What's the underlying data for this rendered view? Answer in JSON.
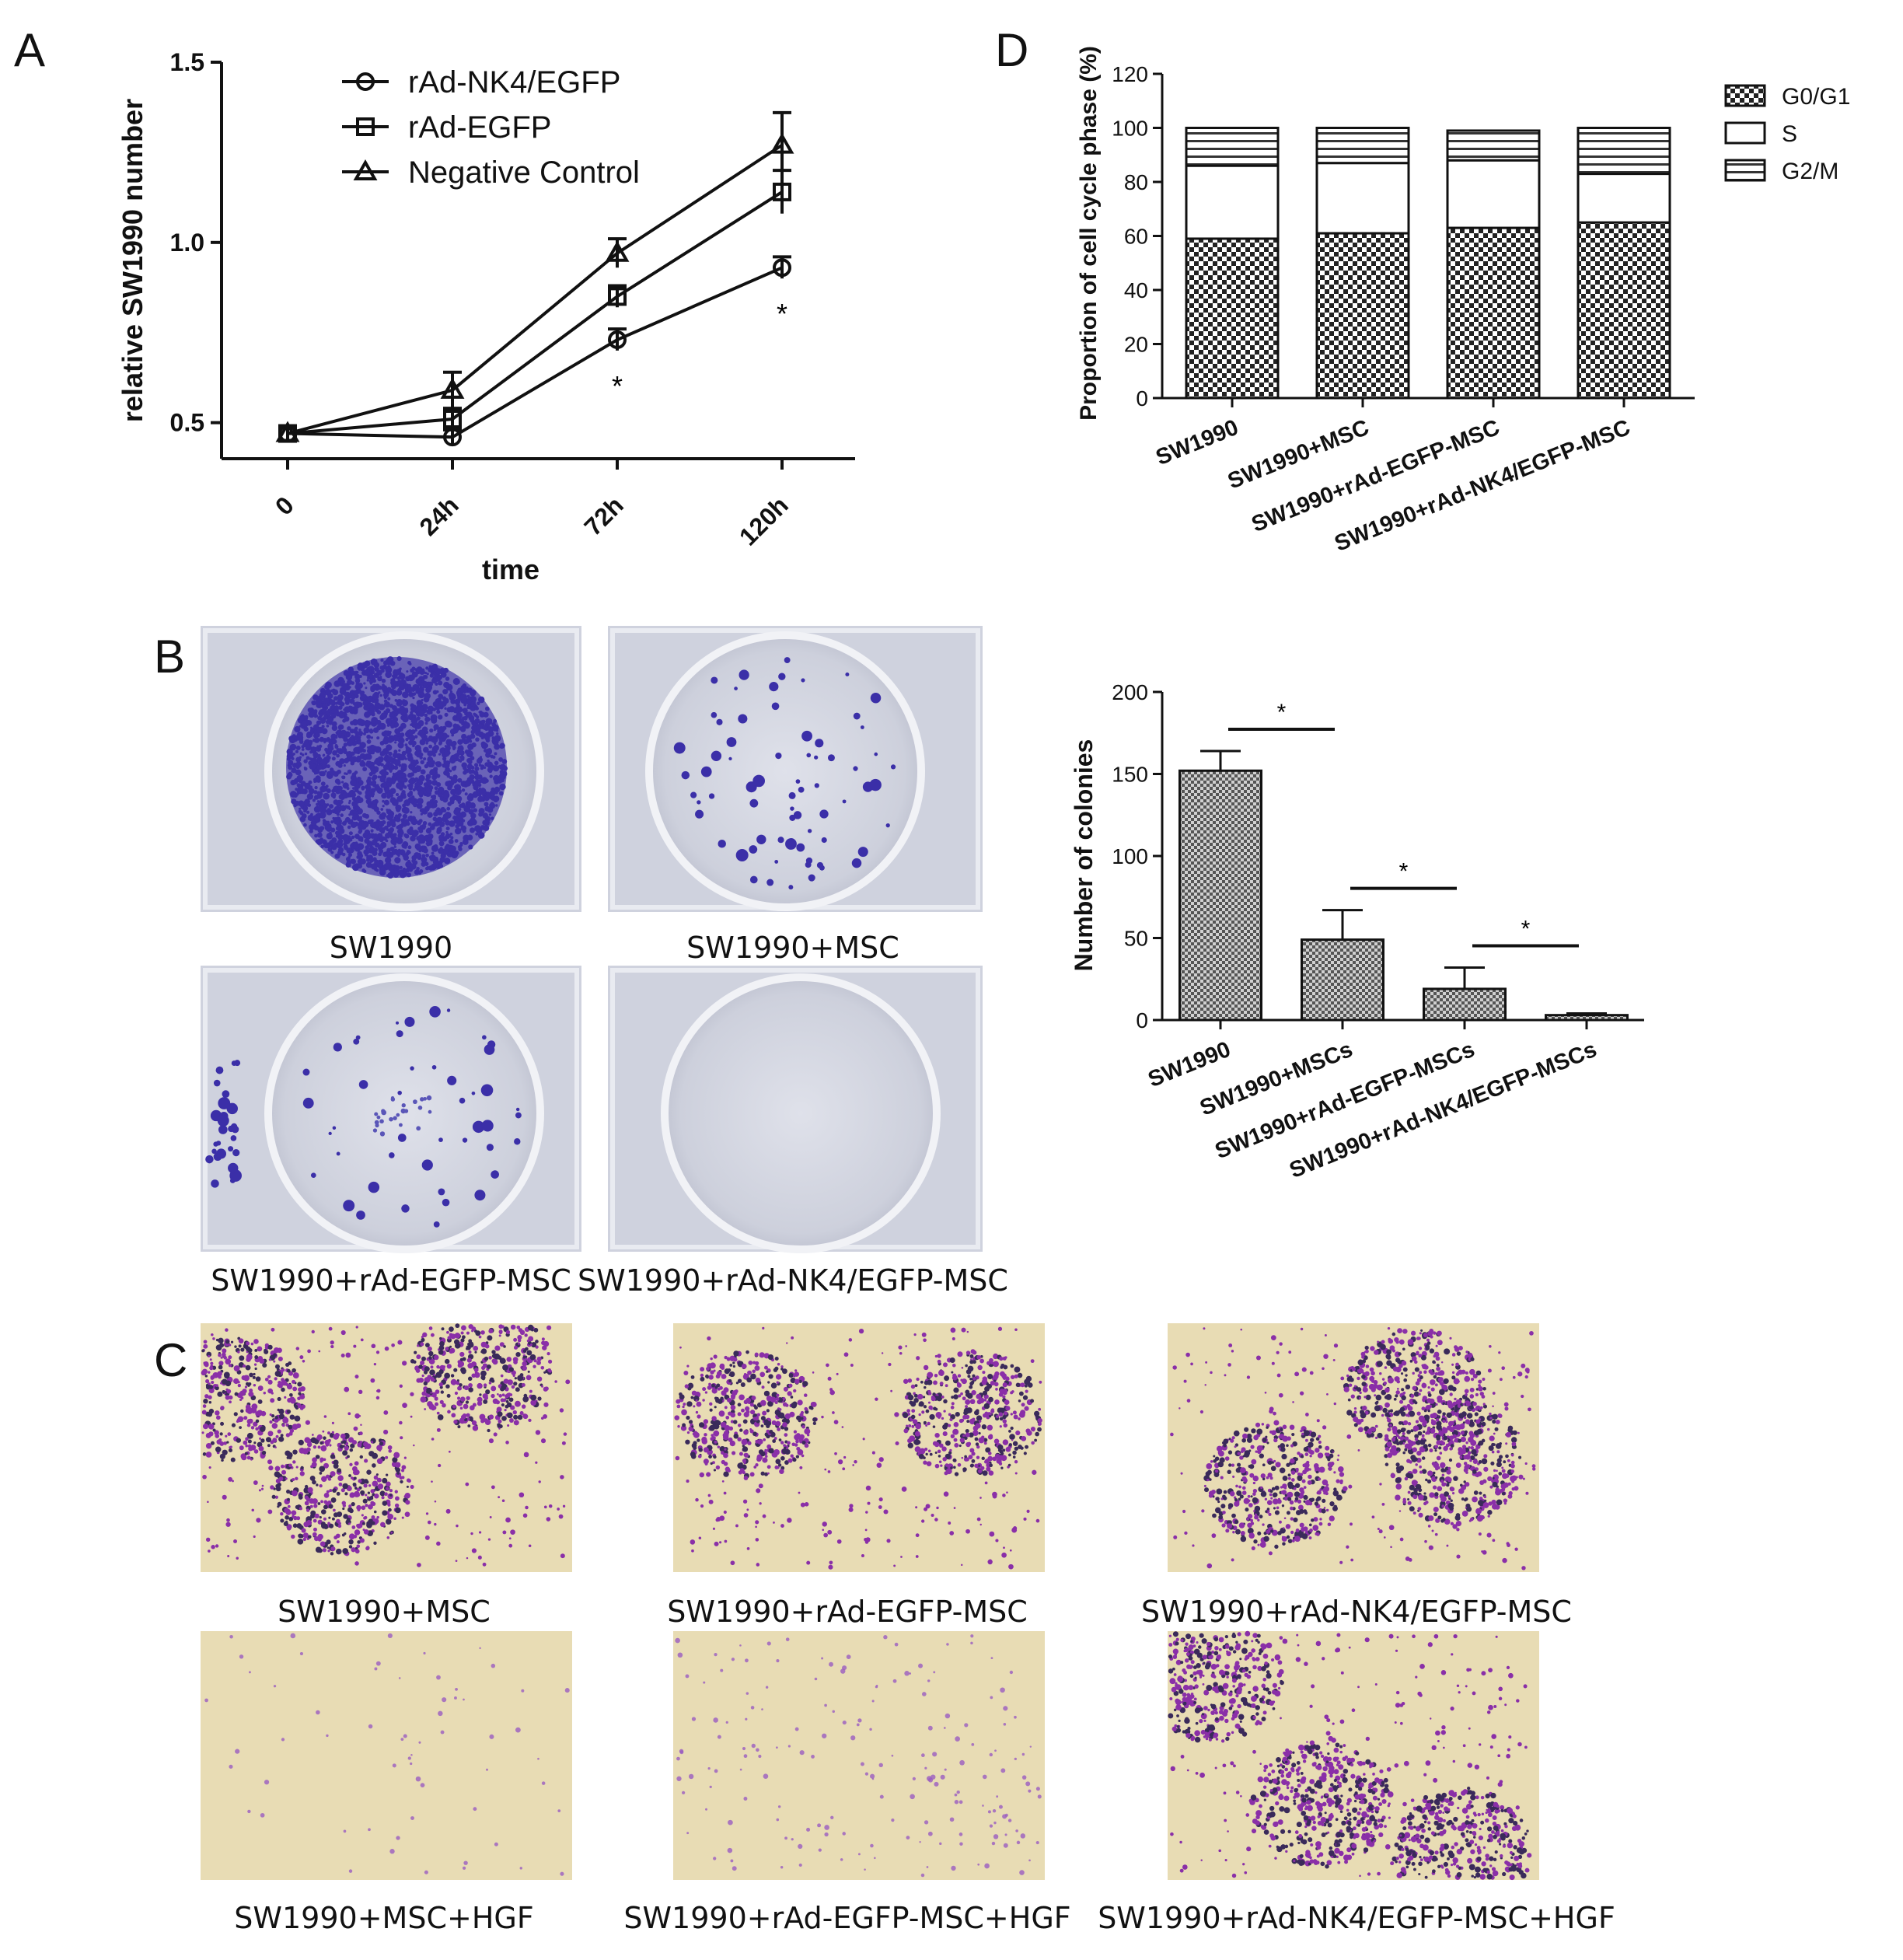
{
  "panels": {
    "A": "A",
    "B": "B",
    "C": "C",
    "D": "D"
  },
  "chart_data": [
    {
      "id": "A",
      "type": "line",
      "xlabel": "time",
      "ylabel": "relative SW1990 number",
      "categories": [
        "0",
        "24h",
        "72h",
        "120h"
      ],
      "ylim": [
        0.4,
        1.5
      ],
      "yticks": [
        "0.5",
        "1.0",
        "1.5"
      ],
      "legend_placement": "top-left",
      "series": [
        {
          "name": "rAd-NK4/EGFP",
          "marker": "circle",
          "values": [
            0.47,
            0.46,
            0.73,
            0.93
          ],
          "errors": [
            0.02,
            0.02,
            0.03,
            0.03
          ]
        },
        {
          "name": "rAd-EGFP",
          "marker": "square",
          "values": [
            0.47,
            0.51,
            0.85,
            1.14
          ],
          "errors": [
            0.02,
            0.03,
            0.03,
            0.06
          ]
        },
        {
          "name": "Negative Control",
          "marker": "triangle",
          "values": [
            0.47,
            0.59,
            0.97,
            1.27
          ],
          "errors": [
            0.02,
            0.05,
            0.04,
            0.09
          ]
        }
      ],
      "annotations": [
        {
          "category": "72h",
          "text": "*"
        },
        {
          "category": "120h",
          "text": "*"
        }
      ]
    },
    {
      "id": "D",
      "type": "bar",
      "stacked": true,
      "ylabel": "Proportion of cell cycle phase (%)",
      "categories": [
        "SW1990",
        "SW1990+MSC",
        "SW1990+rAd-EGFP-MSC",
        "SW1990+rAd-NK4/EGFP-MSC"
      ],
      "ylim": [
        0,
        120
      ],
      "yticks": [
        "0",
        "20",
        "40",
        "60",
        "80",
        "100",
        "120"
      ],
      "legend_placement": "top-right",
      "series": [
        {
          "name": "G0/G1",
          "pattern": "checker",
          "values": [
            59,
            61,
            63,
            65
          ]
        },
        {
          "name": "S",
          "pattern": "white",
          "values": [
            27,
            26,
            25,
            18
          ]
        },
        {
          "name": "G2/M",
          "pattern": "hstripe",
          "values": [
            14,
            13,
            11,
            17
          ]
        }
      ]
    },
    {
      "id": "colonies",
      "type": "bar",
      "ylabel": "Number of colonies",
      "categories": [
        "SW1990",
        "SW1990+MSCs",
        "SW1990+rAd-EGFP-MSCs",
        "SW1990+rAd-NK4/EGFP-MSCs"
      ],
      "ylim": [
        0,
        200
      ],
      "yticks": [
        "0",
        "50",
        "100",
        "150",
        "200"
      ],
      "values": [
        152,
        49,
        19,
        3
      ],
      "errors": [
        12,
        18,
        13,
        1
      ],
      "significance": [
        {
          "from": 0,
          "to": 1,
          "text": "*"
        },
        {
          "from": 1,
          "to": 2,
          "text": "*"
        },
        {
          "from": 2,
          "to": 3,
          "text": "*"
        }
      ]
    }
  ],
  "panel_B": {
    "captions": [
      "SW1990",
      "SW1990+MSC",
      "SW1990+rAd-EGFP-MSC",
      "SW1990+rAd-NK4/EGFP-MSC"
    ]
  },
  "panel_C": {
    "captions": [
      "SW1990+MSC",
      "SW1990+rAd-EGFP-MSC",
      "SW1990+rAd-NK4/EGFP-MSC",
      "SW1990+MSC+HGF",
      "SW1990+rAd-EGFP-MSC+HGF",
      "SW1990+rAd-NK4/EGFP-MSC+HGF"
    ]
  },
  "colors": {
    "crystal_violet": "#3b2fa8",
    "well_bg": "#d9dbe6",
    "transwell_bg": "#e8dcb4",
    "transwell_stain": "#8a2fa8"
  }
}
